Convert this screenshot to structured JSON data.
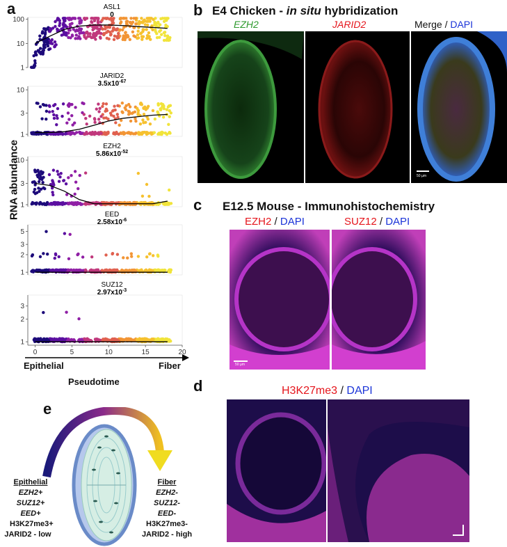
{
  "panel_labels": {
    "a": "a",
    "b": "b",
    "c": "c",
    "d": "d",
    "e": "e"
  },
  "panel_a": {
    "y_title": "RNA abundance",
    "x_title": "Pseudotime",
    "x_left_label": "Epithelial",
    "x_right_label": "Fiber",
    "x_ticks": [
      "0",
      "5",
      "10",
      "15",
      "20"
    ],
    "colors": [
      "#1d0a7a",
      "#5b0fa0",
      "#8f1fa5",
      "#c0387c",
      "#e0604f",
      "#f29535",
      "#f6c12f",
      "#f1e43b"
    ]
  },
  "chart_data": [
    {
      "type": "scatter",
      "title": "ASL1",
      "pvalue": "0",
      "y_scale": "log",
      "y_ticks": [
        "1",
        "10",
        "100"
      ],
      "ylim": [
        1,
        120
      ],
      "xlim": [
        -1,
        20
      ],
      "trend": {
        "x": [
          0,
          2,
          4,
          6,
          8,
          10,
          12,
          14,
          16,
          18
        ],
        "y": [
          10,
          20,
          38,
          52,
          58,
          58,
          55,
          50,
          46,
          42
        ]
      }
    },
    {
      "type": "scatter",
      "title": "JARID2",
      "pvalue_base": "3.5x10",
      "pvalue_exp": "-67",
      "y_scale": "log",
      "y_ticks": [
        "1",
        "3",
        "10"
      ],
      "ylim": [
        0.9,
        12
      ],
      "xlim": [
        -1,
        20
      ],
      "trend": {
        "x": [
          0,
          2,
          4,
          6,
          8,
          10,
          12,
          14,
          16,
          18
        ],
        "y": [
          1.1,
          1.1,
          1.15,
          1.3,
          1.6,
          2.0,
          2.3,
          2.5,
          2.7,
          2.8
        ]
      }
    },
    {
      "type": "scatter",
      "title": "EZH2",
      "pvalue_base": "5.86x10",
      "pvalue_exp": "-52",
      "y_scale": "log",
      "y_ticks": [
        "1",
        "3",
        "10"
      ],
      "ylim": [
        0.9,
        12
      ],
      "xlim": [
        -1,
        20
      ],
      "trend": {
        "x": [
          0,
          2,
          4,
          6,
          8,
          10,
          12,
          14,
          16,
          18
        ],
        "y": [
          3.0,
          2.7,
          2.0,
          1.3,
          1.05,
          1.05,
          1.05,
          1.05,
          1.05,
          1.2
        ]
      }
    },
    {
      "type": "scatter",
      "title": "EED",
      "pvalue_base": "2.58x10",
      "pvalue_exp": "-6",
      "y_scale": "log",
      "y_ticks": [
        "1",
        "2",
        "3",
        "5"
      ],
      "ylim": [
        0.9,
        6.5
      ],
      "xlim": [
        -1,
        20
      ],
      "trend": {
        "x": [
          0,
          18
        ],
        "y": [
          1.0,
          1.0
        ]
      }
    },
    {
      "type": "scatter",
      "title": "SUZ12",
      "pvalue_base": "2.97x10",
      "pvalue_exp": "-3",
      "y_scale": "log",
      "y_ticks": [
        "1",
        "2",
        "3"
      ],
      "ylim": [
        0.9,
        4.2
      ],
      "xlim": [
        -1,
        20
      ],
      "trend": {
        "x": [
          0,
          18
        ],
        "y": [
          1.0,
          1.0
        ]
      }
    }
  ],
  "panel_b": {
    "title_a": "E4 Chicken - ",
    "title_b": "in situ",
    "title_c": " hybridization",
    "ch1": "EZH2",
    "ch2": "JARID2",
    "ch3a": "Merge",
    "ch3b": " / ",
    "ch3c": "DAPI",
    "scale": "50 µm"
  },
  "panel_c": {
    "title": "E12.5 Mouse - Immunohistochemistry",
    "l1a": "EZH2",
    "l1b": " / ",
    "l1c": "DAPI",
    "l2a": "SUZ12",
    "l2b": " / ",
    "l2c": "DAPI",
    "scale": "50 µm"
  },
  "panel_d": {
    "la": "H3K27me3",
    "lb": " / ",
    "lc": "DAPI"
  },
  "panel_e": {
    "epi_title": "Epithelial",
    "epi_lines": [
      "EZH2+",
      "SUZ12+",
      "EED+",
      "H3K27me3+",
      "JARID2 - low"
    ],
    "fib_title": "Fiber",
    "fib_lines": [
      "EZH2-",
      "SUZ12-",
      "EED-",
      "H3K27me3-",
      "JARID2 - high"
    ]
  }
}
